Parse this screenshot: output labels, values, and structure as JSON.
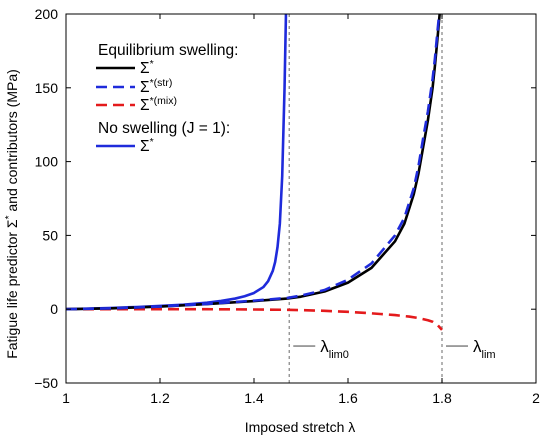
{
  "chart_data": {
    "type": "line",
    "title": "",
    "xlabel": "Imposed stretch λ",
    "ylabel": {
      "prefix": "Fatigue life predictor Σ",
      "sup": "*",
      "suffix": " and contributors (MPa)"
    },
    "xlim": [
      1,
      2
    ],
    "ylim": [
      -50,
      200
    ],
    "xticks": [
      "1",
      "1.2",
      "1.4",
      "1.6",
      "1.8",
      "2"
    ],
    "yticks": [
      "−50",
      "0",
      "50",
      "100",
      "150",
      "200"
    ],
    "xtick_values": [
      1,
      1.2,
      1.4,
      1.6,
      1.8,
      2
    ],
    "ytick_values": [
      -50,
      0,
      50,
      100,
      150,
      200
    ],
    "grid": false,
    "legend_position": "top-left",
    "legend": {
      "group1_title": "Equilibrium swelling:",
      "group2_title": "No swelling (J = 1):",
      "entries": [
        {
          "id": "eq-total",
          "base": "Σ",
          "sup": "*",
          "color": "#000000",
          "dash": "solid"
        },
        {
          "id": "eq-str",
          "base": "Σ",
          "sup": "*(str)",
          "color": "#1f2bdb",
          "dash": "dashed"
        },
        {
          "id": "eq-mix",
          "base": "Σ",
          "sup": "*(mix)",
          "color": "#e41a1c",
          "dash": "dashed"
        },
        {
          "id": "noswell",
          "base": "Σ",
          "sup": "*",
          "color": "#1f2bdb",
          "dash": "solid"
        }
      ]
    },
    "series": [
      {
        "id": "noswell",
        "color": "#1f2bdb",
        "dash": "solid",
        "x": [
          1.0,
          1.05,
          1.1,
          1.15,
          1.2,
          1.25,
          1.3,
          1.33,
          1.36,
          1.38,
          1.4,
          1.42,
          1.43,
          1.44,
          1.445,
          1.45,
          1.455,
          1.46,
          1.465,
          1.468
        ],
        "y": [
          0,
          0.4,
          0.9,
          1.5,
          2.2,
          3.1,
          4.4,
          5.6,
          7.2,
          8.8,
          11,
          15,
          19,
          26,
          32,
          42,
          58,
          90,
          150,
          200
        ]
      },
      {
        "id": "eq-total",
        "color": "#000000",
        "dash": "solid",
        "x": [
          1.0,
          1.1,
          1.2,
          1.3,
          1.4,
          1.47,
          1.5,
          1.55,
          1.6,
          1.65,
          1.7,
          1.72,
          1.74,
          1.75,
          1.76,
          1.77,
          1.78,
          1.785,
          1.79,
          1.795
        ],
        "y": [
          0,
          0.6,
          1.8,
          3.5,
          5.5,
          7.2,
          8.5,
          12,
          18,
          28,
          46,
          58,
          78,
          92,
          110,
          128,
          150,
          165,
          182,
          200
        ]
      },
      {
        "id": "eq-str",
        "color": "#1f2bdb",
        "dash": "dashed",
        "x": [
          1.0,
          1.1,
          1.2,
          1.3,
          1.4,
          1.47,
          1.5,
          1.55,
          1.6,
          1.65,
          1.7,
          1.72,
          1.74,
          1.75,
          1.76,
          1.77,
          1.78,
          1.785,
          1.79,
          1.794
        ],
        "y": [
          0,
          0.6,
          1.8,
          3.6,
          5.8,
          7.6,
          9.2,
          13,
          20,
          31,
          50,
          62,
          82,
          97,
          116,
          134,
          156,
          170,
          187,
          200
        ]
      },
      {
        "id": "eq-mix",
        "color": "#e41a1c",
        "dash": "dashed",
        "x": [
          1.0,
          1.1,
          1.2,
          1.3,
          1.4,
          1.47,
          1.5,
          1.55,
          1.6,
          1.65,
          1.7,
          1.73,
          1.75,
          1.77,
          1.78,
          1.79,
          1.8
        ],
        "y": [
          0,
          0,
          0,
          0,
          -0.2,
          -0.4,
          -0.6,
          -1.1,
          -1.8,
          -2.8,
          -4.0,
          -5.0,
          -6.0,
          -7.5,
          -8.5,
          -10.5,
          -14
        ]
      }
    ],
    "annotations": [
      {
        "id": "lim0",
        "x": 1.475,
        "base": "λ",
        "sub": "lim0",
        "y_label": -25
      },
      {
        "id": "lim",
        "x": 1.8,
        "base": "λ",
        "sub": "lim",
        "y_label": -25
      }
    ]
  }
}
